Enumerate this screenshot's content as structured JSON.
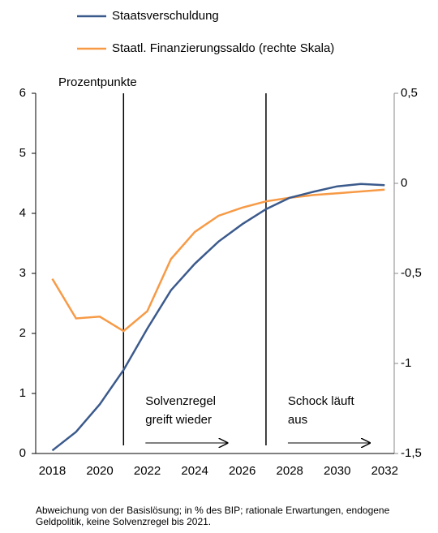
{
  "chart_data": {
    "type": "line",
    "axis_label": "Prozentpunkte",
    "note": "Abweichung von der Basislösung; in % des BIP; rationale Erwartungen, endogene Geldpolitik, keine Solvenzregel bis 2021.",
    "x": [
      2018,
      2019,
      2020,
      2021,
      2022,
      2023,
      2024,
      2025,
      2026,
      2027,
      2028,
      2029,
      2030,
      2031,
      2032
    ],
    "series": [
      {
        "name": "Staatsverschuldung",
        "color": "#3b5a8c",
        "values": [
          0.05,
          0.36,
          0.82,
          1.39,
          2.08,
          2.72,
          3.16,
          3.53,
          3.82,
          4.07,
          4.26,
          4.36,
          4.45,
          4.49,
          4.47
        ]
      },
      {
        "name": "Staatl. Finanzierungssaldo (rechte Skala)",
        "color": "#f79a46",
        "axis": "y2",
        "values": [
          -0.53,
          -0.75,
          -0.74,
          -0.82,
          -0.71,
          -0.42,
          -0.27,
          -0.18,
          -0.135,
          -0.1,
          -0.08,
          -0.065,
          -0.055,
          -0.045,
          -0.035
        ]
      }
    ],
    "xlim": [
      2017.3,
      2032.4
    ],
    "xticks": [
      2018,
      2020,
      2022,
      2024,
      2026,
      2028,
      2030,
      2032
    ],
    "ylim": [
      0,
      6
    ],
    "yticks": [
      0,
      1,
      2,
      3,
      4,
      5,
      6
    ],
    "y2lim": [
      -1.5,
      0.5
    ],
    "y2ticks": [
      {
        "value": -1.5,
        "label": "-1,5"
      },
      -1,
      {
        "value": -0.5,
        "label": "-0,5"
      },
      0,
      {
        "value": 0.5,
        "label": "0,5"
      }
    ],
    "vlines": [
      2021,
      2027
    ],
    "annotations": [
      {
        "lines": [
          "Solvenzregel",
          "greift wieder"
        ]
      },
      {
        "lines": [
          "Schock läuft",
          "aus"
        ]
      }
    ]
  }
}
